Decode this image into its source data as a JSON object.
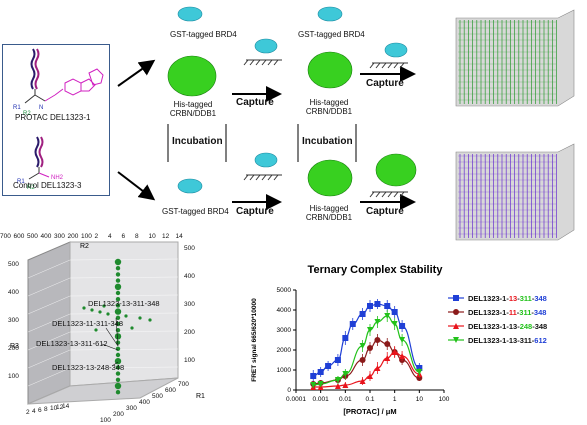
{
  "molecules": {
    "protac_label": "PROTAC DEL1323-1",
    "control_label": "Control DEL1323-3",
    "r1": "R1",
    "r2": "R2",
    "r3": "R3"
  },
  "workflow": {
    "gst_label": "GST-tagged BRD4",
    "his_label_line1": "His-tagged",
    "his_label_line2": "CRBN/DDB1",
    "incubation": "Incubation",
    "capture": "Capture"
  },
  "cube_plot": {
    "axis_r1": "R1",
    "axis_r2": "R2",
    "axis_r3": "R3",
    "r2_ticks": [
      "700",
      "600",
      "500",
      "400",
      "300",
      "200",
      "100",
      "2",
      "4",
      "6",
      "8",
      "10",
      "12",
      "14"
    ],
    "r3_ticks": [
      "2",
      "4",
      "6",
      "8",
      "10",
      "12",
      "14"
    ],
    "r1_ticks": [
      "100",
      "200",
      "300",
      "400",
      "500",
      "600",
      "700"
    ],
    "z_ticks_left": [
      "500",
      "400",
      "300",
      "200",
      "100"
    ],
    "z_ticks_right": [
      "500",
      "400",
      "300",
      "200",
      "100"
    ],
    "annotations": [
      "DEL1323-13-311-348",
      "DEL1323-11-311-348",
      "DEL1323-13-311-612",
      "DEL1323-13-248-348"
    ],
    "colors": {
      "points": "#1f8a2e",
      "panel": "#b8b8bc"
    }
  },
  "chart_data": {
    "type": "scatter",
    "title": "Ternary Complex Stability",
    "xlabel": "[PROTAC] / μM",
    "ylabel": "FRET signal 665/620*10000",
    "xscale": "log",
    "xlim": [
      0.0001,
      100
    ],
    "ylim": [
      0,
      5000
    ],
    "xticks": [
      "0.0001",
      "0.001",
      "0.01",
      "0.1",
      "1",
      "10",
      "100"
    ],
    "yticks": [
      "0",
      "1000",
      "2000",
      "3000",
      "4000",
      "5000"
    ],
    "legend_position": "right",
    "series": [
      {
        "name": "DEL1323-1-13-311-348",
        "name_parts": [
          "DEL1323-1-",
          "13",
          "-",
          "311",
          "-",
          "348"
        ],
        "color": "#1f3fd6",
        "marker": "square",
        "x": [
          0.0005,
          0.001,
          0.002,
          0.005,
          0.01,
          0.02,
          0.05,
          0.1,
          0.2,
          0.5,
          1,
          2,
          10
        ],
        "y": [
          700,
          900,
          1200,
          1500,
          2600,
          3300,
          3800,
          4200,
          4300,
          4200,
          3900,
          3200,
          1100
        ],
        "err": [
          300,
          250,
          250,
          300,
          350,
          300,
          300,
          300,
          250,
          300,
          300,
          300,
          250
        ]
      },
      {
        "name": "DEL1323-1-11-311-348",
        "name_parts": [
          "DEL1323-1-",
          "11",
          "-",
          "311",
          "-",
          "348"
        ],
        "color": "#8b1a1a",
        "marker": "circle",
        "x": [
          0.0005,
          0.001,
          0.005,
          0.01,
          0.05,
          0.1,
          0.2,
          0.5,
          1,
          2,
          10
        ],
        "y": [
          300,
          350,
          500,
          700,
          1500,
          2100,
          2500,
          2300,
          1900,
          1500,
          600
        ],
        "err": [
          150,
          150,
          200,
          200,
          300,
          300,
          300,
          300,
          250,
          250,
          150
        ]
      },
      {
        "name": "DEL1323-1-13-248-348",
        "name_parts": [
          "DEL1323-1-13-",
          "248",
          "-348"
        ],
        "color": "#e8141c",
        "marker": "triangle",
        "x": [
          0.0005,
          0.001,
          0.005,
          0.01,
          0.05,
          0.1,
          0.2,
          0.5,
          1,
          2,
          10
        ],
        "y": [
          150,
          150,
          200,
          250,
          450,
          700,
          1100,
          1600,
          1900,
          1700,
          800
        ],
        "err": [
          100,
          100,
          100,
          150,
          200,
          250,
          300,
          300,
          300,
          250,
          200
        ]
      },
      {
        "name": "DEL1323-1-13-311-612",
        "name_parts": [
          "DEL1323-1-13-311-",
          "612"
        ],
        "color": "#22c21a",
        "marker": "inv-triangle",
        "x": [
          0.0005,
          0.001,
          0.005,
          0.01,
          0.05,
          0.1,
          0.2,
          0.5,
          1,
          2,
          10
        ],
        "y": [
          250,
          300,
          500,
          800,
          2200,
          3000,
          3400,
          3700,
          3300,
          2500,
          900
        ],
        "err": [
          150,
          150,
          200,
          250,
          300,
          300,
          300,
          300,
          300,
          300,
          200
        ]
      }
    ],
    "legend_part_colors": [
      [
        "#111111",
        "#e8141c",
        "#111111",
        "#22c21a",
        "#111111",
        "#1f3fd6"
      ],
      [
        "#111111",
        "#e8141c",
        "#111111",
        "#22c21a",
        "#111111",
        "#1f3fd6"
      ],
      [
        "#111111",
        "#22c21a",
        "#111111"
      ],
      [
        "#111111",
        "#1f3fd6"
      ]
    ]
  }
}
